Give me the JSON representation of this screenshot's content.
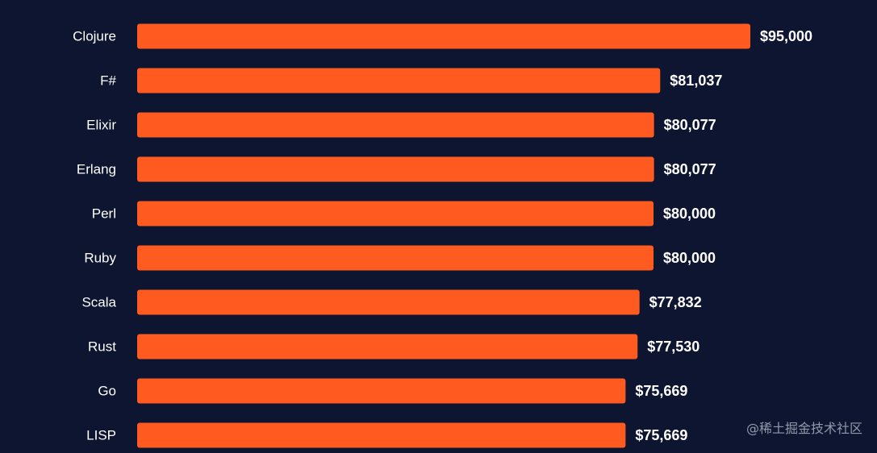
{
  "chart_data": {
    "type": "bar",
    "orientation": "horizontal",
    "categories": [
      "Clojure",
      "F#",
      "Elixir",
      "Erlang",
      "Perl",
      "Ruby",
      "Scala",
      "Rust",
      "Go",
      "LISP"
    ],
    "values": [
      95000,
      81037,
      80077,
      80077,
      80000,
      80000,
      77832,
      77530,
      75669,
      75669
    ],
    "value_labels": [
      "$95,000",
      "$81,037",
      "$80,077",
      "$80,077",
      "$80,000",
      "$80,000",
      "$77,832",
      "$77,530",
      "$75,669",
      "$75,669"
    ],
    "title": "",
    "xlabel": "",
    "ylabel": "",
    "grid": false,
    "legend": "none"
  },
  "colors": {
    "background": "#0e1530",
    "bar": "#ff5a1f",
    "text": "#ffffff"
  },
  "watermark": "@稀土掘金技术社区"
}
